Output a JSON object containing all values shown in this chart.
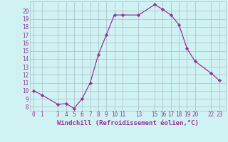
{
  "x": [
    0,
    1,
    3,
    4,
    5,
    6,
    7,
    8,
    9,
    10,
    11,
    13,
    15,
    16,
    17,
    18,
    19,
    20,
    22,
    23
  ],
  "y": [
    10.0,
    9.5,
    8.3,
    8.4,
    7.8,
    9.0,
    11.0,
    14.5,
    17.0,
    19.5,
    19.5,
    19.5,
    20.8,
    20.2,
    19.5,
    18.3,
    15.3,
    13.7,
    12.2,
    11.3
  ],
  "xticks": [
    0,
    1,
    3,
    4,
    5,
    6,
    7,
    8,
    9,
    10,
    11,
    13,
    15,
    16,
    17,
    18,
    19,
    20,
    22,
    23
  ],
  "yticks": [
    8,
    9,
    10,
    11,
    12,
    13,
    14,
    15,
    16,
    17,
    18,
    19,
    20
  ],
  "ylim": [
    7.5,
    21.2
  ],
  "xlim": [
    -0.5,
    23.8
  ],
  "line_color": "#993399",
  "marker": "D",
  "marker_size": 2.2,
  "bg_color": "#cff2f2",
  "grid_color": "#aabbcc",
  "xlabel": "Windchill (Refroidissement éolien,°C)",
  "xlabel_fontsize": 6.5,
  "tick_fontsize": 5.5,
  "font_family": "monospace"
}
